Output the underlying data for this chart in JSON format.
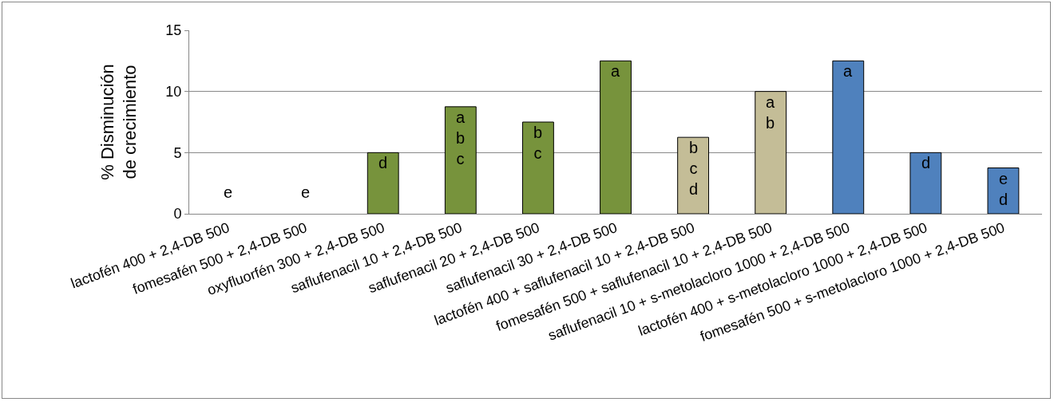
{
  "chart_data": {
    "type": "bar",
    "ylabel": "% Disminución\nde crecimiento",
    "categories": [
      "lactofén 400 + 2,4-DB 500",
      "fomesafén 500 + 2,4-DB 500",
      "oxyfluorfén 300 + 2,4-DB 500",
      "saflufenacil 10 + 2,4-DB 500",
      "saflufenacil 20 + 2,4-DB 500",
      "saflufenacil 30 + 2,4-DB 500",
      "lactofén 400 + saflufenacil 10 + 2,4-DB 500",
      "fomesafén 500 + saflufenacil 10 + 2,4-DB 500",
      "saflufenacil 10 + s-metolacloro 1000 + 2,4-DB 500",
      "lactofén 400 + s-metolacloro 1000 + 2,4-DB 500",
      "fomesafén 500 + s-metolacloro 1000 + 2,4-DB 500"
    ],
    "values": [
      0,
      0,
      5,
      8.75,
      7.5,
      12.5,
      6.25,
      10,
      12.5,
      5,
      3.75
    ],
    "colors": [
      "#77933c",
      "#77933c",
      "#77933c",
      "#77933c",
      "#77933c",
      "#77933c",
      "#c4bd97",
      "#c4bd97",
      "#4f81bd",
      "#4f81bd",
      "#4f81bd"
    ],
    "ylim": [
      0,
      15
    ],
    "yticks": [
      0,
      5,
      10,
      15
    ],
    "grid": "y",
    "annotations": [
      {
        "text": "e",
        "x": "lactofén 400 + 2,4-DB 500",
        "y": 0
      },
      {
        "text": "e",
        "x": "fomesafén 500 + 2,4-DB 500",
        "y": 0
      },
      {
        "text": "d",
        "x": "oxyfluorfén 300 + 2,4-DB 500",
        "y": 5
      },
      {
        "text": "abc",
        "x": "saflufenacil 10 + 2,4-DB 500",
        "y": 8.75
      },
      {
        "text": "bc",
        "x": "saflufenacil 20 + 2,4-DB 500",
        "y": 7.5
      },
      {
        "text": "a",
        "x": "saflufenacil 30 + 2,4-DB 500",
        "y": 12.5
      },
      {
        "text": "bcd",
        "x": "lactofén 400 + saflufenacil 10 + 2,4-DB 500",
        "y": 6.25
      },
      {
        "text": "ab",
        "x": "fomesafén 500 + saflufenacil 10 + 2,4-DB 500",
        "y": 10
      },
      {
        "text": "a",
        "x": "saflufenacil 10 + s-metolacloro 1000 + 2,4-DB 500",
        "y": 12.5
      },
      {
        "text": "d",
        "x": "lactofén 400 + s-metolacloro 1000 + 2,4-DB 500",
        "y": 5
      },
      {
        "text": "ed",
        "x": "fomesafén 500 + s-metolacloro 1000 + 2,4-DB 500",
        "y": 3.75
      }
    ]
  }
}
